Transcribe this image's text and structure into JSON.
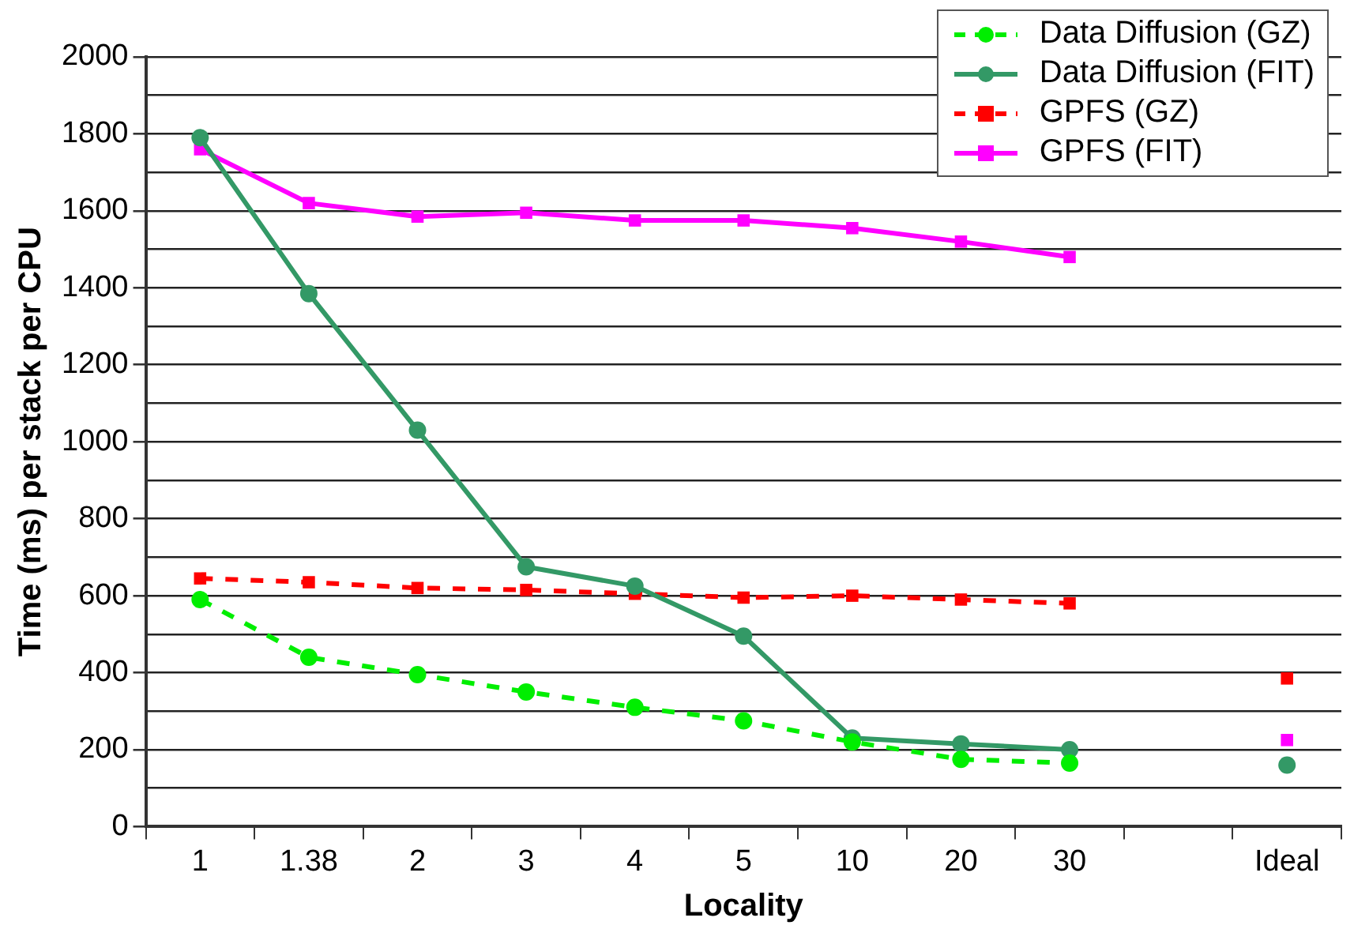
{
  "chart_data": {
    "type": "line",
    "xlabel": "Locality",
    "ylabel": "Time (ms) per stack per CPU",
    "categories": [
      "1",
      "1.38",
      "2",
      "3",
      "4",
      "5",
      "10",
      "20",
      "30",
      null,
      "Ideal"
    ],
    "series": [
      {
        "name": "Data Diffusion (GZ)",
        "color": "#00ee00",
        "line_style": "dashed",
        "marker": "circle",
        "values": [
          590,
          440,
          395,
          350,
          310,
          275,
          220,
          175,
          165,
          null,
          null
        ]
      },
      {
        "name": "Data Diffusion (FIT)",
        "color": "#339966",
        "line_style": "solid",
        "marker": "circle",
        "values": [
          1790,
          1385,
          1030,
          675,
          625,
          495,
          230,
          215,
          200,
          null,
          160
        ]
      },
      {
        "name": "GPFS (GZ)",
        "color": "#ff0000",
        "line_style": "dashed",
        "marker": "square",
        "values": [
          645,
          635,
          620,
          615,
          605,
          595,
          600,
          590,
          580,
          null,
          385
        ]
      },
      {
        "name": "GPFS (FIT)",
        "color": "#ff00ff",
        "line_style": "solid",
        "marker": "square",
        "values": [
          1760,
          1620,
          1585,
          1595,
          1575,
          1575,
          1555,
          1520,
          1480,
          null,
          225
        ]
      }
    ],
    "ylim": [
      0,
      2000
    ],
    "yticks": [
      0,
      {
        "value": 100,
        "label": null
      },
      200,
      {
        "value": 300,
        "label": null
      },
      400,
      {
        "value": 500,
        "label": null
      },
      600,
      {
        "value": 700,
        "label": null
      },
      800,
      {
        "value": 900,
        "label": null
      },
      1000,
      {
        "value": 1100,
        "label": null
      },
      1200,
      {
        "value": 1300,
        "label": null
      },
      1400,
      {
        "value": 1500,
        "label": null
      },
      1600,
      {
        "value": 1700,
        "label": null
      },
      1800,
      {
        "value": 1900,
        "label": null
      },
      2000
    ],
    "grid": "y",
    "legend": "top right"
  }
}
